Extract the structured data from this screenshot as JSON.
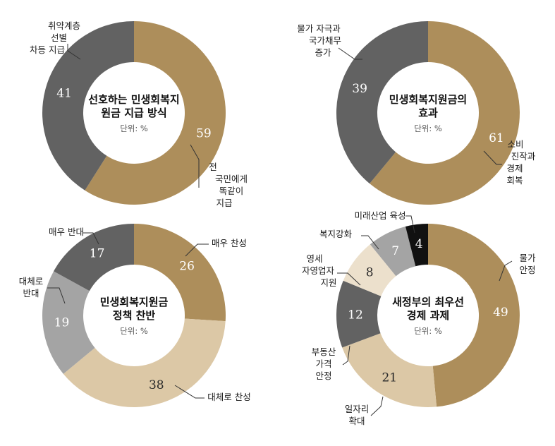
{
  "chart_data": [
    {
      "type": "pie",
      "title": [
        "선호하는 민생회복지",
        "원금 지급 방식"
      ],
      "unit_label": "단위: %",
      "slices": [
        {
          "label": [
            "전",
            "국민에게",
            "똑같이",
            "지급"
          ],
          "value": 59,
          "color": "#ad8e5b"
        },
        {
          "label": [
            "취약계층",
            "선별",
            "차등 지급"
          ],
          "value": 41,
          "color": "#626262"
        }
      ]
    },
    {
      "type": "pie",
      "title": [
        "민생회복지원금의",
        "효과"
      ],
      "unit_label": "단위: %",
      "slices": [
        {
          "label": [
            "소비",
            "진작과",
            "경제",
            "회복"
          ],
          "value": 61,
          "color": "#ad8e5b"
        },
        {
          "label": [
            "물가 자극과",
            "국가채무",
            "증가"
          ],
          "value": 39,
          "color": "#626262"
        }
      ]
    },
    {
      "type": "pie",
      "title": [
        "민생회복지원금",
        "정책 찬반"
      ],
      "unit_label": "단위: %",
      "slices": [
        {
          "label": [
            "매우 찬성"
          ],
          "value": 26,
          "color": "#ad8e5b"
        },
        {
          "label": [
            "대체로 찬성"
          ],
          "value": 38,
          "color": "#dcc8a6"
        },
        {
          "label": [
            "대체로",
            "반대"
          ],
          "value": 19,
          "color": "#a4a4a4"
        },
        {
          "label": [
            "매우 반대"
          ],
          "value": 17,
          "color": "#626262"
        }
      ]
    },
    {
      "type": "pie",
      "title": [
        "새정부의 최우선",
        "경제 과제"
      ],
      "unit_label": "단위: %",
      "slices": [
        {
          "label": [
            "물가",
            "안정"
          ],
          "value": 49,
          "color": "#ad8e5b"
        },
        {
          "label": [
            "일자리",
            "확대"
          ],
          "value": 21,
          "color": "#dcc8a6"
        },
        {
          "label": [
            "부동산",
            "가격",
            "안정"
          ],
          "value": 12,
          "color": "#626262"
        },
        {
          "label": [
            "영세",
            "자영업자",
            "지원"
          ],
          "value": 8,
          "color": "#ece0cc"
        },
        {
          "label": [
            "복지강화"
          ],
          "value": 7,
          "color": "#a4a4a4"
        },
        {
          "label": [
            "미래산업 육성"
          ],
          "value": 4,
          "color": "#111111"
        }
      ]
    }
  ]
}
